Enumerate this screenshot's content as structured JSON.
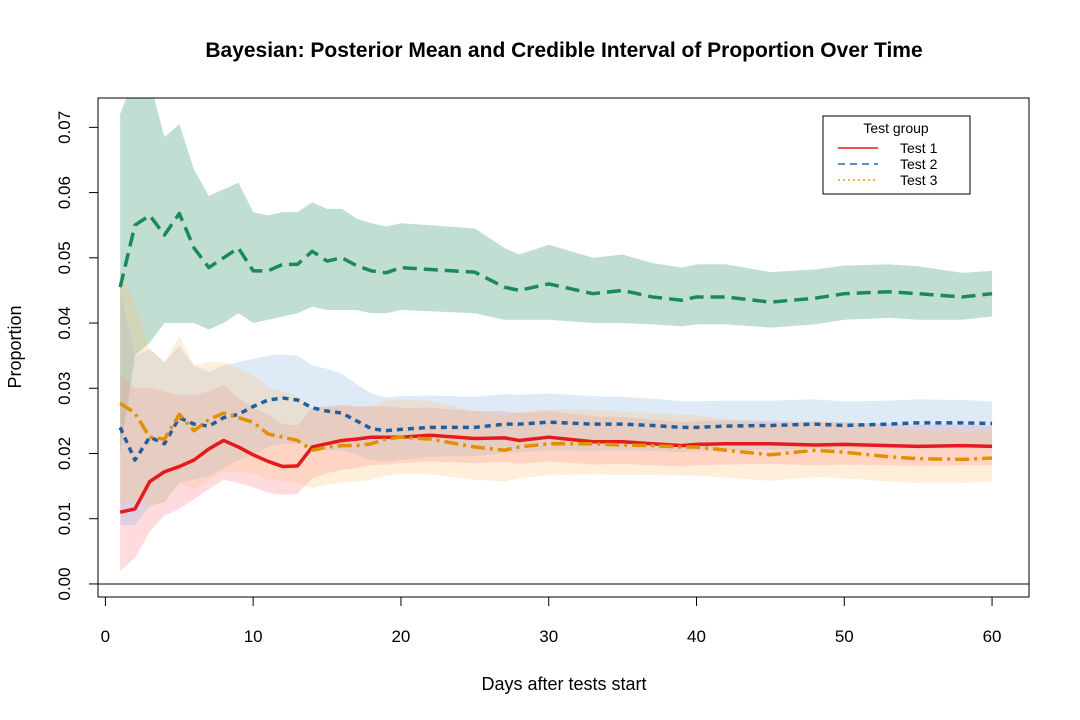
{
  "chart_data": {
    "type": "line",
    "title": "Bayesian: Posterior Mean and Credible Interval of Proportion Over Time",
    "xlabel": "Days after tests start",
    "ylabel": "Proportion",
    "xlim": [
      -0.5,
      62.5
    ],
    "ylim": [
      -0.002,
      0.0745
    ],
    "xticks": [
      0,
      10,
      20,
      30,
      40,
      50,
      60
    ],
    "yticks": [
      0.0,
      0.01,
      0.02,
      0.03,
      0.04,
      0.05,
      0.06,
      0.07
    ],
    "ytick_labels": [
      "0.00",
      "0.01",
      "0.02",
      "0.03",
      "0.04",
      "0.05",
      "0.06",
      "0.07"
    ],
    "hline": 0,
    "grid": false,
    "legend": {
      "title": "Test group",
      "position": "top-right",
      "entries": [
        {
          "label": "Test 1",
          "color": "#e41a1c",
          "dash": "solid"
        },
        {
          "label": "Test 2",
          "color": "#1f6fb4",
          "dash": "dashed"
        },
        {
          "label": "Test 3",
          "color": "#e69f00",
          "dash": "dotted"
        }
      ]
    },
    "series": [
      {
        "color": "#1b8a5a",
        "band_color": "#1b8a5a",
        "dash": "14,7",
        "x": [
          1,
          2,
          3,
          4,
          5,
          6,
          7,
          8,
          9,
          10,
          11,
          12,
          13,
          14,
          15,
          16,
          17,
          18,
          19,
          20,
          22,
          25,
          27,
          28,
          30,
          33,
          35,
          37,
          39,
          40,
          42,
          45,
          48,
          50,
          53,
          55,
          58,
          60
        ],
        "mean": [
          0.0455,
          0.055,
          0.0565,
          0.0535,
          0.0568,
          0.0515,
          0.0485,
          0.05,
          0.0515,
          0.048,
          0.048,
          0.049,
          0.049,
          0.051,
          0.0495,
          0.05,
          0.0488,
          0.048,
          0.0477,
          0.0485,
          0.0482,
          0.0478,
          0.0455,
          0.045,
          0.046,
          0.0445,
          0.045,
          0.044,
          0.0435,
          0.044,
          0.044,
          0.0432,
          0.0438,
          0.0445,
          0.0448,
          0.0445,
          0.044,
          0.0445
        ],
        "lower": [
          0.02,
          0.035,
          0.037,
          0.04,
          0.04,
          0.04,
          0.039,
          0.04,
          0.0415,
          0.04,
          0.0405,
          0.041,
          0.0415,
          0.0425,
          0.042,
          0.042,
          0.042,
          0.0415,
          0.0415,
          0.042,
          0.0418,
          0.0415,
          0.0405,
          0.0405,
          0.0405,
          0.04,
          0.04,
          0.0398,
          0.0395,
          0.0398,
          0.0398,
          0.0393,
          0.0398,
          0.0405,
          0.0408,
          0.0405,
          0.0405,
          0.041
        ],
        "upper": [
          0.072,
          0.078,
          0.077,
          0.0685,
          0.0705,
          0.0635,
          0.0595,
          0.0605,
          0.0615,
          0.057,
          0.0565,
          0.057,
          0.057,
          0.0585,
          0.0575,
          0.0575,
          0.056,
          0.0553,
          0.0548,
          0.0553,
          0.055,
          0.0545,
          0.0515,
          0.0505,
          0.052,
          0.05,
          0.0505,
          0.0492,
          0.0485,
          0.049,
          0.049,
          0.0478,
          0.0482,
          0.0488,
          0.049,
          0.0487,
          0.0477,
          0.048
        ]
      },
      {
        "color": "#e41a1c",
        "band_color": "#ff7f88",
        "dash": "",
        "x": [
          1,
          2,
          3,
          4,
          5,
          6,
          7,
          8,
          9,
          10,
          11,
          12,
          13,
          14,
          15,
          16,
          17,
          18,
          19,
          20,
          22,
          25,
          27,
          28,
          30,
          33,
          35,
          37,
          39,
          40,
          42,
          45,
          48,
          50,
          53,
          55,
          58,
          60
        ],
        "mean": [
          0.011,
          0.0115,
          0.0157,
          0.0172,
          0.018,
          0.019,
          0.0207,
          0.022,
          0.021,
          0.0198,
          0.0188,
          0.018,
          0.0181,
          0.021,
          0.0215,
          0.022,
          0.0222,
          0.0225,
          0.0225,
          0.0225,
          0.0228,
          0.0223,
          0.0224,
          0.022,
          0.0225,
          0.0218,
          0.0218,
          0.0215,
          0.0212,
          0.0214,
          0.0215,
          0.0215,
          0.0213,
          0.0214,
          0.0212,
          0.0211,
          0.0212,
          0.0211
        ],
        "lower": [
          0.002,
          0.004,
          0.008,
          0.0105,
          0.0115,
          0.013,
          0.0145,
          0.016,
          0.0155,
          0.0148,
          0.014,
          0.0137,
          0.0138,
          0.0162,
          0.017,
          0.0175,
          0.0178,
          0.0182,
          0.0183,
          0.0185,
          0.0188,
          0.0185,
          0.0187,
          0.0184,
          0.0188,
          0.0183,
          0.0184,
          0.0182,
          0.018,
          0.0182,
          0.0183,
          0.0184,
          0.0182,
          0.0183,
          0.0182,
          0.0181,
          0.0182,
          0.0182
        ],
        "upper": [
          0.032,
          0.03,
          0.03,
          0.0295,
          0.029,
          0.029,
          0.0295,
          0.0305,
          0.0285,
          0.027,
          0.026,
          0.0245,
          0.0243,
          0.027,
          0.0272,
          0.0275,
          0.0272,
          0.0272,
          0.0272,
          0.027,
          0.027,
          0.0265,
          0.0265,
          0.0262,
          0.0265,
          0.0257,
          0.0256,
          0.0252,
          0.0248,
          0.025,
          0.0251,
          0.025,
          0.0248,
          0.0248,
          0.0245,
          0.0244,
          0.0244,
          0.0243
        ]
      },
      {
        "color": "#1f5fa0",
        "band_color": "#8ab4e0",
        "dash": "6,5",
        "x": [
          1,
          2,
          3,
          4,
          5,
          6,
          7,
          8,
          9,
          10,
          11,
          12,
          13,
          14,
          15,
          16,
          17,
          18,
          19,
          20,
          22,
          25,
          27,
          28,
          30,
          33,
          35,
          37,
          39,
          40,
          42,
          45,
          48,
          50,
          53,
          55,
          58,
          60
        ],
        "mean": [
          0.024,
          0.019,
          0.0225,
          0.0215,
          0.0255,
          0.0245,
          0.0242,
          0.0255,
          0.026,
          0.0272,
          0.0282,
          0.0285,
          0.0282,
          0.027,
          0.0265,
          0.0262,
          0.025,
          0.0238,
          0.0235,
          0.0237,
          0.024,
          0.024,
          0.0245,
          0.0245,
          0.0248,
          0.0245,
          0.0245,
          0.0243,
          0.024,
          0.024,
          0.0242,
          0.0243,
          0.0245,
          0.0243,
          0.0245,
          0.0247,
          0.0247,
          0.0246
        ],
        "lower": [
          0.009,
          0.009,
          0.012,
          0.0125,
          0.0155,
          0.016,
          0.0165,
          0.0178,
          0.019,
          0.0198,
          0.021,
          0.0215,
          0.0215,
          0.0208,
          0.0205,
          0.0205,
          0.0198,
          0.019,
          0.0188,
          0.019,
          0.0195,
          0.0196,
          0.0201,
          0.0202,
          0.0205,
          0.0204,
          0.0205,
          0.0204,
          0.0202,
          0.0203,
          0.0205,
          0.0206,
          0.0208,
          0.0207,
          0.0209,
          0.0211,
          0.0212,
          0.0212
        ],
        "upper": [
          0.045,
          0.035,
          0.036,
          0.034,
          0.0365,
          0.0335,
          0.0325,
          0.0335,
          0.034,
          0.0345,
          0.035,
          0.0352,
          0.035,
          0.0335,
          0.033,
          0.0322,
          0.0306,
          0.0292,
          0.0286,
          0.0288,
          0.0289,
          0.0287,
          0.0291,
          0.029,
          0.0292,
          0.0288,
          0.0287,
          0.0284,
          0.028,
          0.028,
          0.0281,
          0.0281,
          0.0283,
          0.028,
          0.0281,
          0.0283,
          0.0282,
          0.028
        ]
      },
      {
        "color": "#e09000",
        "band_color": "#ffc27a",
        "dash": "14,5,3,5",
        "x": [
          1,
          2,
          3,
          4,
          5,
          6,
          7,
          8,
          9,
          10,
          11,
          12,
          13,
          14,
          15,
          16,
          17,
          18,
          19,
          20,
          22,
          25,
          27,
          28,
          30,
          33,
          35,
          37,
          39,
          40,
          42,
          45,
          48,
          50,
          53,
          55,
          58,
          60
        ],
        "mean": [
          0.0277,
          0.0262,
          0.0225,
          0.0222,
          0.026,
          0.0235,
          0.0252,
          0.0262,
          0.0255,
          0.0248,
          0.023,
          0.0225,
          0.022,
          0.0205,
          0.021,
          0.0212,
          0.0212,
          0.0215,
          0.0222,
          0.0225,
          0.0222,
          0.021,
          0.0205,
          0.021,
          0.0215,
          0.0215,
          0.0213,
          0.0212,
          0.021,
          0.021,
          0.0205,
          0.0198,
          0.0205,
          0.0202,
          0.0195,
          0.0192,
          0.0191,
          0.0193
        ],
        "lower": [
          0.012,
          0.013,
          0.012,
          0.0125,
          0.0155,
          0.0145,
          0.016,
          0.0172,
          0.0172,
          0.017,
          0.016,
          0.0158,
          0.0155,
          0.0147,
          0.0152,
          0.0156,
          0.0157,
          0.016,
          0.0166,
          0.0169,
          0.0168,
          0.016,
          0.0157,
          0.0162,
          0.0167,
          0.0168,
          0.0167,
          0.0167,
          0.0166,
          0.0166,
          0.0163,
          0.0158,
          0.0164,
          0.0162,
          0.0157,
          0.0155,
          0.0155,
          0.0157
        ],
        "upper": [
          0.048,
          0.043,
          0.036,
          0.034,
          0.038,
          0.0335,
          0.034,
          0.034,
          0.033,
          0.032,
          0.0302,
          0.0295,
          0.0288,
          0.027,
          0.0272,
          0.0272,
          0.0271,
          0.0273,
          0.0281,
          0.0283,
          0.028,
          0.0265,
          0.0258,
          0.0263,
          0.0268,
          0.0267,
          0.0264,
          0.0262,
          0.0259,
          0.0259,
          0.0253,
          0.0244,
          0.0251,
          0.0247,
          0.0239,
          0.0235,
          0.0233,
          0.0235
        ]
      }
    ]
  }
}
